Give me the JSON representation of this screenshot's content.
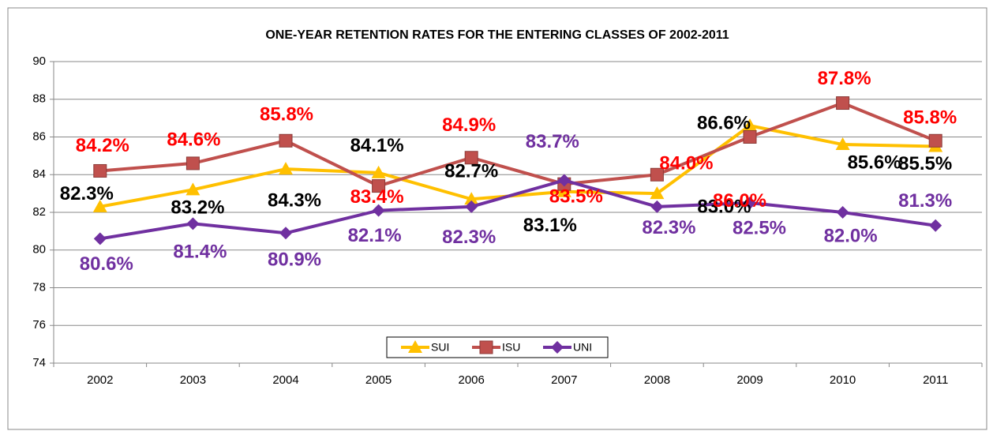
{
  "chart_data": {
    "type": "line",
    "title": "ONE-YEAR RETENTION RATES FOR THE ENTERING CLASSES OF 2002-2011",
    "categories": [
      "2002",
      "2003",
      "2004",
      "2005",
      "2006",
      "2007",
      "2008",
      "2009",
      "2010",
      "2011"
    ],
    "ylim": [
      74,
      90
    ],
    "yticks": [
      74,
      76,
      78,
      80,
      82,
      84,
      86,
      88,
      90
    ],
    "grid": true,
    "legend": "bottom",
    "series": [
      {
        "name": "SUI",
        "color": "#FFC000",
        "label_color": "#000000",
        "values": [
          82.3,
          83.2,
          84.3,
          84.1,
          82.7,
          83.1,
          83.0,
          86.6,
          85.6,
          85.5
        ],
        "value_labels": [
          "82.3%",
          "83.2%",
          "84.3%",
          "84.1%",
          "82.7%",
          "83.1%",
          "83.0%",
          "86.6%",
          "85.6%",
          "85.5%"
        ]
      },
      {
        "name": "ISU",
        "color": "#C0504D",
        "label_color": "#FF0000",
        "values": [
          84.2,
          84.6,
          85.8,
          83.4,
          84.9,
          83.5,
          84.0,
          86.0,
          87.8,
          85.8
        ],
        "value_labels": [
          "84.2%",
          "84.6%",
          "85.8%",
          "83.4%",
          "84.9%",
          "83.5%",
          "84.0%",
          "86.0%",
          "87.8%",
          "85.8%"
        ]
      },
      {
        "name": "UNI",
        "color": "#7030A0",
        "label_color": "#7030A0",
        "values": [
          80.6,
          81.4,
          80.9,
          82.1,
          82.3,
          83.7,
          82.3,
          82.5,
          82.0,
          81.3
        ],
        "value_labels": [
          "80.6%",
          "81.4%",
          "80.9%",
          "82.1%",
          "82.3%",
          "83.7%",
          "82.3%",
          "82.5%",
          "82.0%",
          "81.3%"
        ]
      }
    ]
  }
}
